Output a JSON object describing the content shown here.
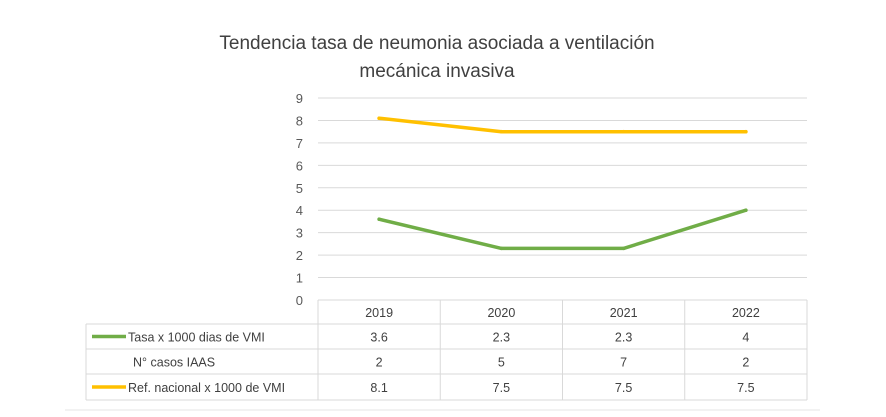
{
  "chart_data": {
    "type": "line",
    "title_line1": "Tendencia tasa de neumonia asociada a ventilación",
    "title_line2": "mecánica invasiva",
    "categories": [
      "2019",
      "2020",
      "2021",
      "2022"
    ],
    "ylim": [
      0,
      9
    ],
    "yticks": [
      "0",
      "1",
      "2",
      "3",
      "4",
      "5",
      "6",
      "7",
      "8",
      "9"
    ],
    "grid": true,
    "series": [
      {
        "name": "Tasa x 1000 dias de VMI",
        "values": [
          3.6,
          2.3,
          2.3,
          4
        ],
        "labels": [
          "3.6",
          "2.3",
          "2.3",
          "4"
        ],
        "color": "#70ad47",
        "plotted": true
      },
      {
        "name": "N° casos  IAAS",
        "values": [
          2,
          5,
          7,
          2
        ],
        "labels": [
          "2",
          "5",
          "7",
          "2"
        ],
        "color": null,
        "plotted": false
      },
      {
        "name": "Ref. nacional x 1000 de VMI",
        "values": [
          8.1,
          7.5,
          7.5,
          7.5
        ],
        "labels": [
          "8.1",
          "7.5",
          "7.5",
          "7.5"
        ],
        "color": "#ffc000",
        "plotted": true
      }
    ]
  }
}
